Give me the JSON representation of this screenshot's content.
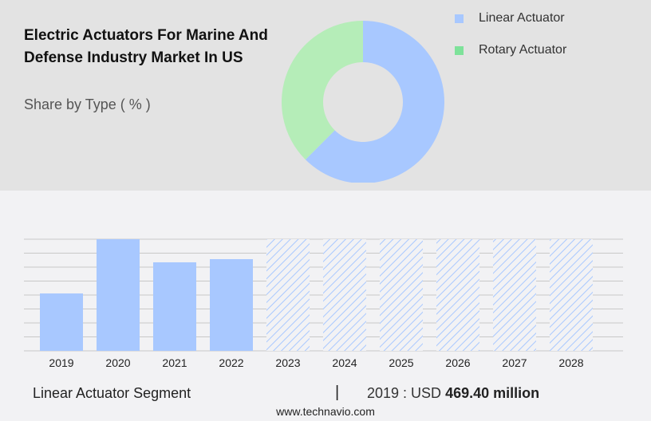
{
  "chart_data": [
    {
      "type": "pie",
      "title": "Electric Actuators For Marine And Defense Industry Market In US",
      "subtitle": "Share by Type ( % )",
      "donut": true,
      "slices": [
        {
          "name": "Linear Actuator",
          "value": 62.5,
          "color": "#a8c8ff"
        },
        {
          "name": "Rotary Actuator",
          "value": 37.5,
          "color": "#b5edb8"
        }
      ],
      "legend_colors": [
        "#a8c8ff",
        "#7ee29a"
      ],
      "legend_placement": "top-right"
    },
    {
      "type": "bar",
      "categories": [
        "2019",
        "2020",
        "2021",
        "2022",
        "2023",
        "2024",
        "2025",
        "2026",
        "2027",
        "2028"
      ],
      "values": [
        469.4,
        913,
        724,
        750,
        null,
        null,
        null,
        null,
        null,
        null
      ],
      "forecast_from": "2023",
      "bar_color": "#a8c8ff",
      "grid": true,
      "ylim": [
        0,
        913
      ]
    }
  ],
  "footer": {
    "segment": "Linear Actuator Segment",
    "separator": "|",
    "year_label": "2019 : USD",
    "value": "469.40 million",
    "site": "www.technavio.com"
  }
}
